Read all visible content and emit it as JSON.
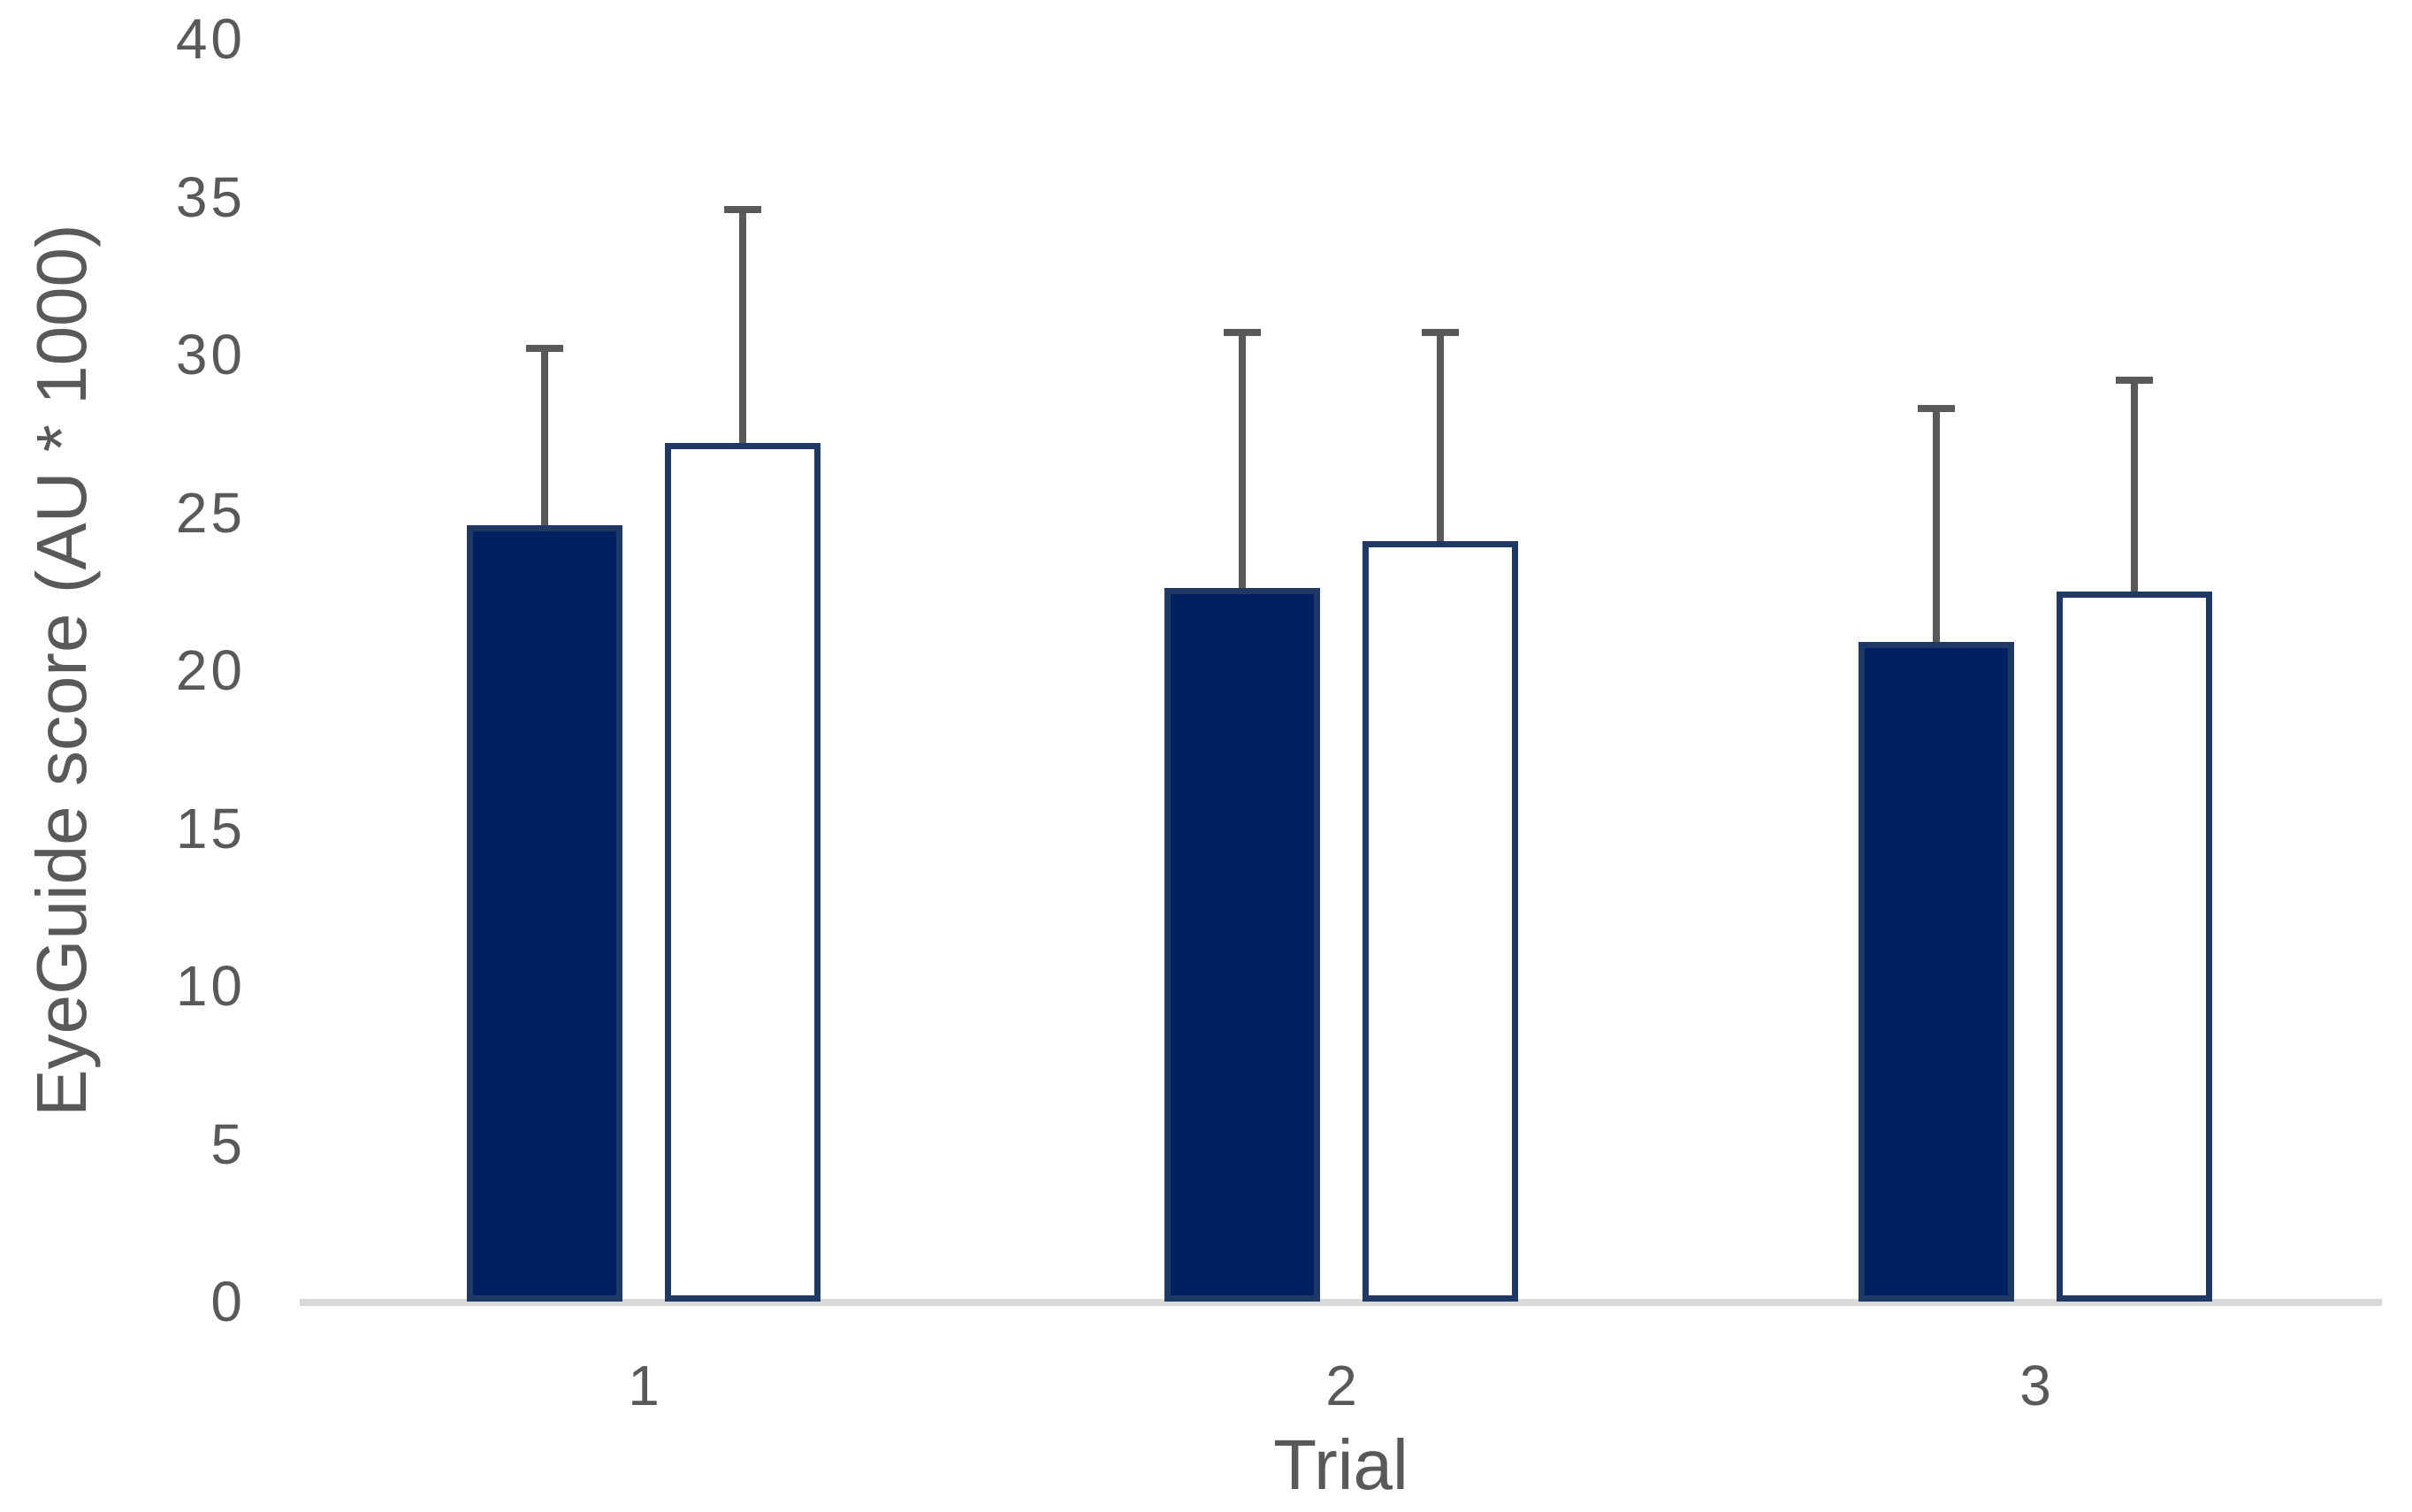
{
  "chart_data": {
    "type": "bar",
    "title": "",
    "xlabel": "Trial",
    "ylabel": "EyeGuide score (AU * 1000)",
    "categories": [
      "1",
      "2",
      "3"
    ],
    "series": [
      {
        "name": "filled-navy-bars",
        "appearance": "solid dark navy fill",
        "fill": "#002060",
        "border": "#1F3864",
        "values": [
          24.6,
          22.6,
          20.9
        ],
        "error_tops": [
          30.2,
          30.7,
          28.3
        ]
      },
      {
        "name": "open-white-bars",
        "appearance": "white fill with navy outline",
        "fill": "#FFFFFF",
        "border": "#1F3864",
        "values": [
          27.2,
          24.1,
          22.5
        ],
        "error_tops": [
          34.6,
          30.7,
          29.2
        ]
      }
    ],
    "ylim": [
      0,
      40
    ],
    "ytick_step": 5,
    "yticks": [
      "0",
      "5",
      "10",
      "15",
      "20",
      "25",
      "30",
      "35",
      "40"
    ],
    "grid": false,
    "legend": "none",
    "error_bar_color": "#595959",
    "axis_line_color": "#D9D9D9",
    "text_color": "#595959",
    "background_color": "#FFFFFF"
  }
}
